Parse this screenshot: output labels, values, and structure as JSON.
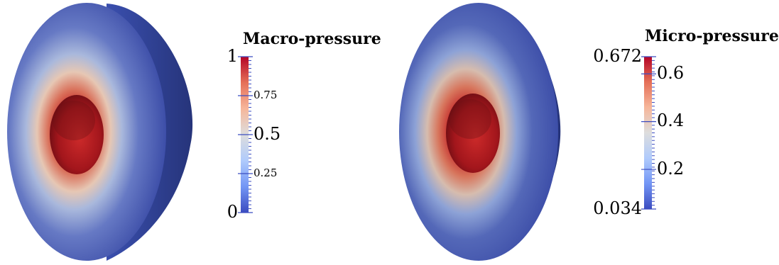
{
  "left_panel": {
    "title": "Macro-pressure",
    "ticks": [
      {
        "value": 1,
        "label": "1",
        "major": true
      },
      {
        "value": 0.75,
        "label": "0.75",
        "major": false
      },
      {
        "value": 0.5,
        "label": "0.5",
        "major": true
      },
      {
        "value": 0.25,
        "label": "0.25",
        "major": false
      },
      {
        "value": 0,
        "label": "0",
        "major": true
      }
    ],
    "range": [
      0,
      1
    ]
  },
  "right_panel": {
    "title": "Micro-pressure",
    "ticks": [
      {
        "value": 0.672,
        "label": "0.672",
        "major": true
      },
      {
        "value": 0.6,
        "label": "0.6",
        "major": true
      },
      {
        "value": 0.4,
        "label": "0.4",
        "major": true
      },
      {
        "value": 0.2,
        "label": "0.2",
        "major": true
      },
      {
        "value": 0.034,
        "label": "0.034",
        "major": true
      }
    ],
    "range": [
      0.034,
      0.672
    ]
  },
  "colormap": [
    "#3b4cc0",
    "#7396f5",
    "#b0cbfc",
    "#dddddd",
    "#f6b69a",
    "#e57058",
    "#b40426"
  ]
}
